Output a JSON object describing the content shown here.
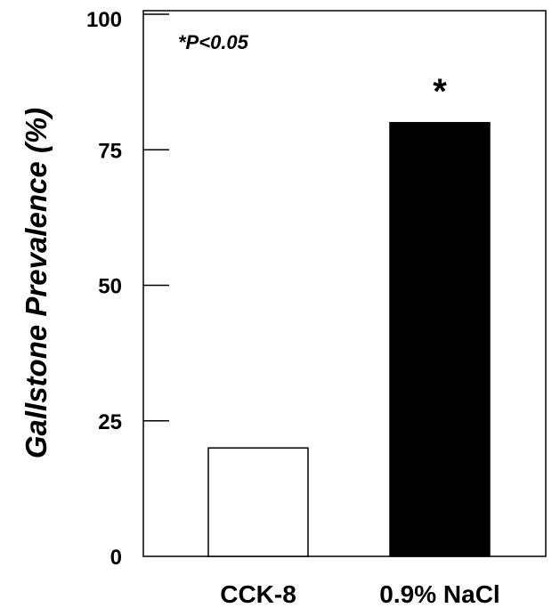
{
  "chart_data": {
    "type": "bar",
    "categories": [
      "CCK-8",
      "0.9% NaCl"
    ],
    "values": [
      20,
      80
    ],
    "colors": [
      "#ffffff",
      "#000000"
    ],
    "title": "",
    "xlabel": "",
    "ylabel": "Gallstone Prevalence (%)",
    "ylim": [
      0,
      100
    ],
    "yticks": [
      0,
      25,
      50,
      75,
      100
    ],
    "ytick_labels": [
      "0",
      "25",
      "50",
      "75",
      "100"
    ],
    "grid": false,
    "annotation": "*P<0.05",
    "significance_marker": "*",
    "significance_category_index": 1
  }
}
